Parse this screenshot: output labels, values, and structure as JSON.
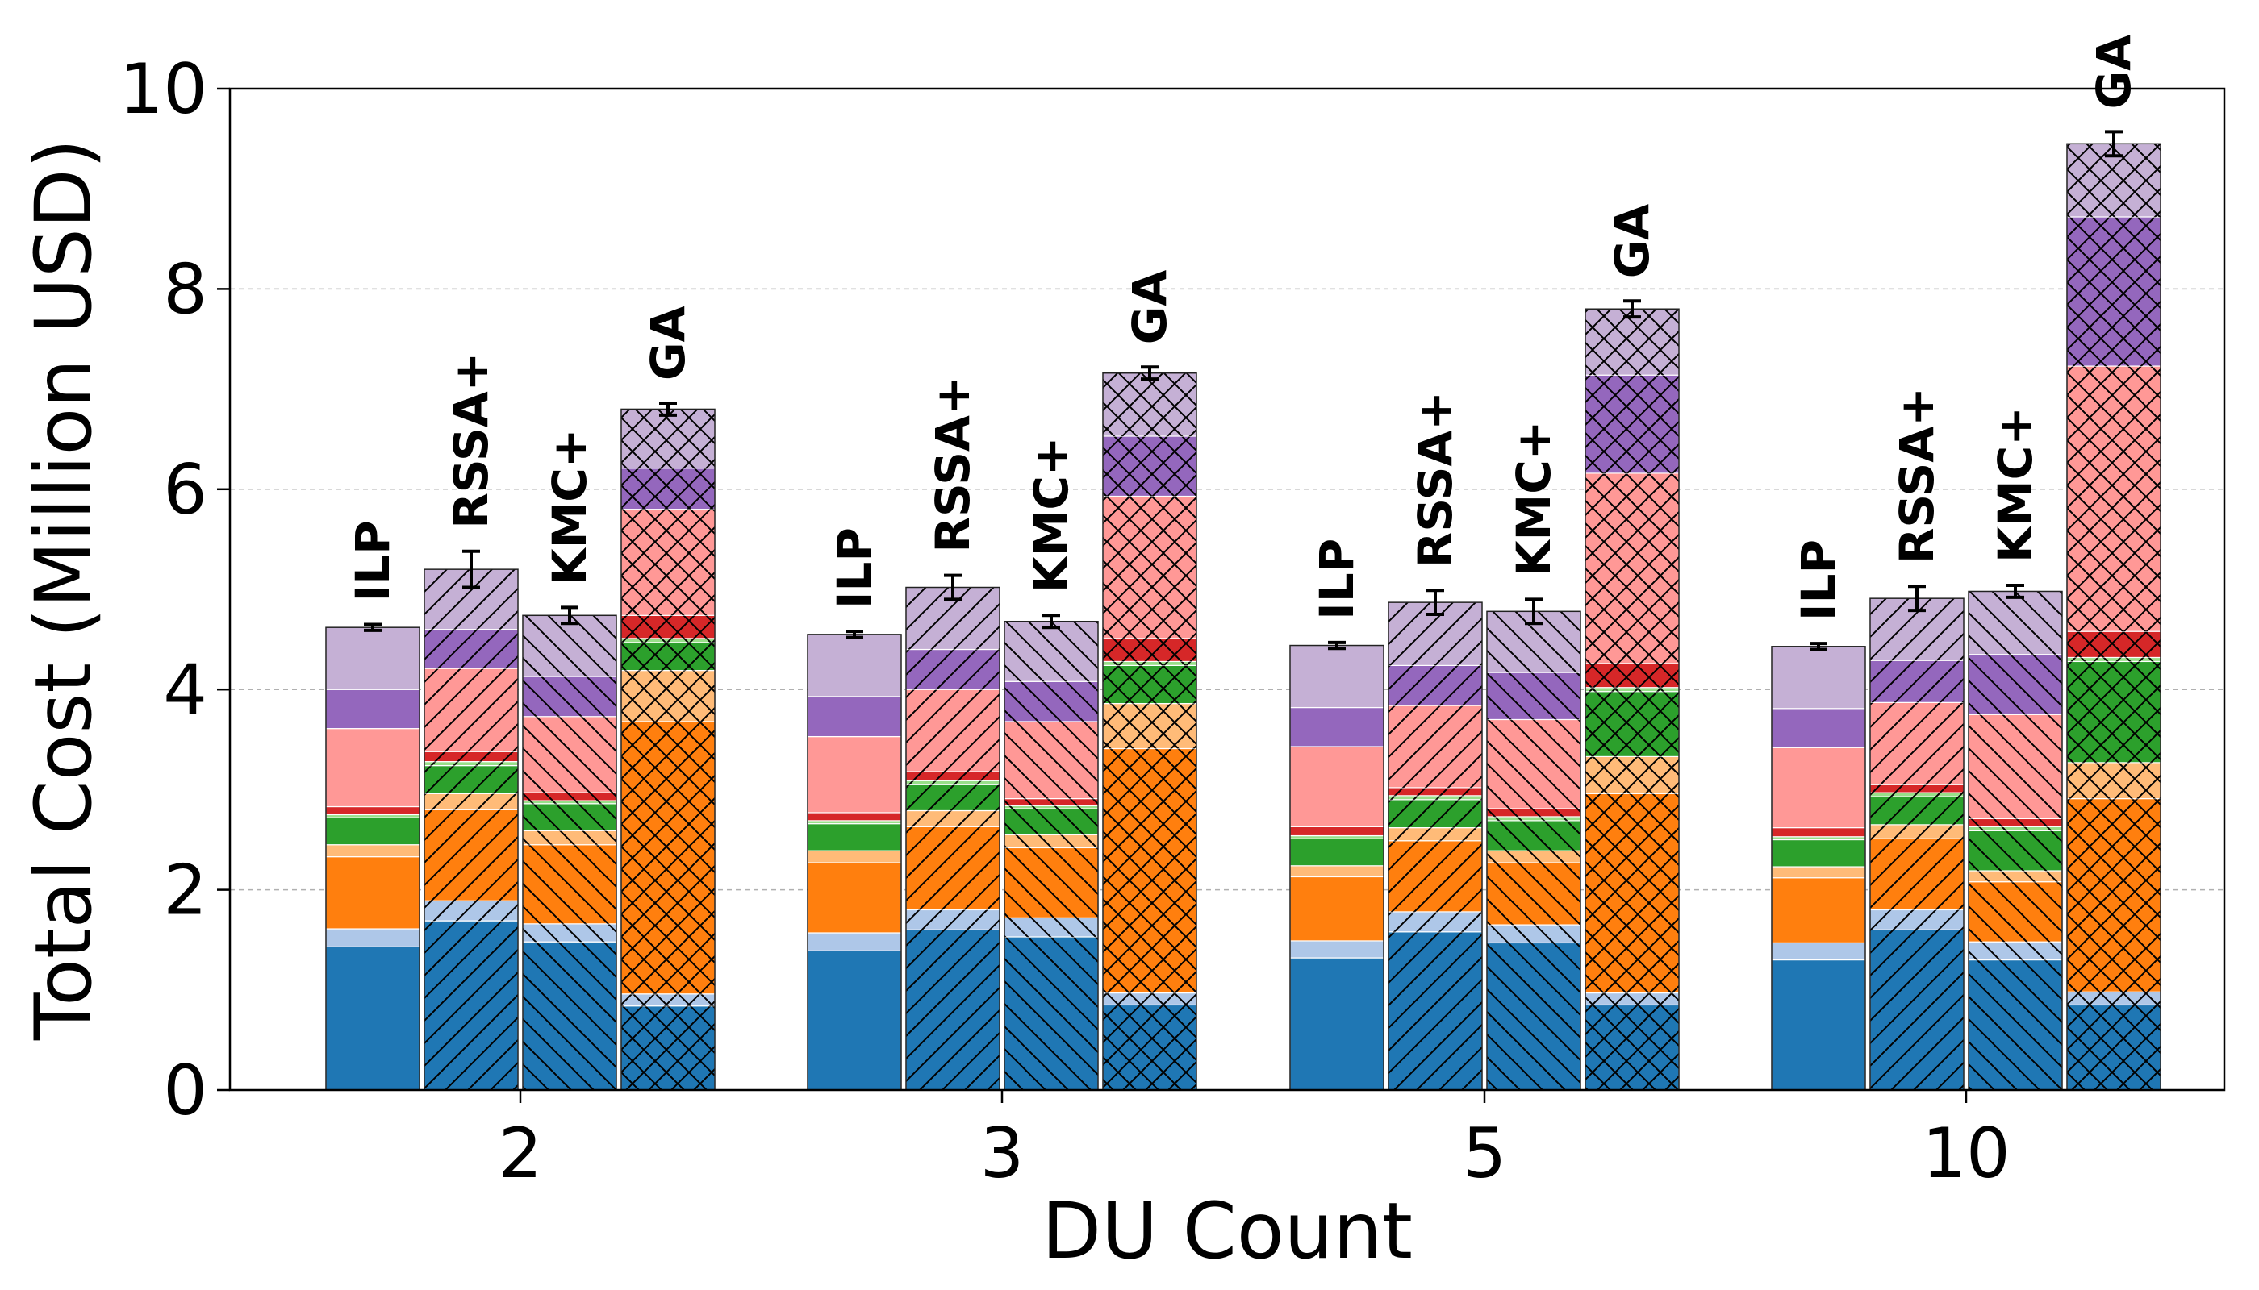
{
  "chart_data": {
    "type": "bar",
    "stacked": true,
    "xlabel": "DU Count",
    "ylabel": "Total Cost (Million USD)",
    "ylim": [
      0,
      10
    ],
    "yticks": [
      0,
      2,
      4,
      6,
      8,
      10
    ],
    "grid": "y-dashed",
    "categories": [
      "2",
      "3",
      "5",
      "10"
    ],
    "methods": [
      "ILP",
      "RSSA+",
      "KMC+",
      "GA"
    ],
    "segment_colors": [
      "#1f77b4",
      "#aec7e8",
      "#ff7f0e",
      "#ffbb78",
      "#2ca02c",
      "#98df8a",
      "#d62728",
      "#ff9896",
      "#9467bd",
      "#c5b0d5"
    ],
    "method_hatches": {
      "ILP": "none",
      "RSSA+": "forward-diagonal",
      "KMC+": "back-diagonal",
      "GA": "crosshatch"
    },
    "bars": [
      {
        "group": "2",
        "method": "ILP",
        "segments": [
          1.43,
          0.18,
          0.72,
          0.12,
          0.27,
          0.03,
          0.08,
          0.78,
          0.39,
          0.62
        ],
        "total": 4.62,
        "error": 0.03
      },
      {
        "group": "2",
        "method": "RSSA+",
        "segments": [
          1.69,
          0.2,
          0.91,
          0.16,
          0.28,
          0.04,
          0.1,
          0.83,
          0.39,
          0.6
        ],
        "total": 5.2,
        "error": 0.18
      },
      {
        "group": "2",
        "method": "KMC+",
        "segments": [
          1.48,
          0.18,
          0.79,
          0.14,
          0.27,
          0.03,
          0.08,
          0.76,
          0.4,
          0.61
        ],
        "total": 4.74,
        "error": 0.08
      },
      {
        "group": "2",
        "method": "GA",
        "segments": [
          0.84,
          0.12,
          2.72,
          0.51,
          0.28,
          0.04,
          0.23,
          1.06,
          0.41,
          0.59
        ],
        "total": 6.8,
        "error": 0.06
      },
      {
        "group": "3",
        "method": "ILP",
        "segments": [
          1.39,
          0.18,
          0.7,
          0.12,
          0.27,
          0.03,
          0.08,
          0.76,
          0.4,
          0.62
        ],
        "total": 4.55,
        "error": 0.03
      },
      {
        "group": "3",
        "method": "RSSA+",
        "segments": [
          1.6,
          0.2,
          0.83,
          0.16,
          0.26,
          0.04,
          0.09,
          0.82,
          0.4,
          0.62
        ],
        "total": 5.02,
        "error": 0.12
      },
      {
        "group": "3",
        "method": "KMC+",
        "segments": [
          1.53,
          0.19,
          0.7,
          0.13,
          0.26,
          0.03,
          0.07,
          0.77,
          0.4,
          0.6
        ],
        "total": 4.68,
        "error": 0.06
      },
      {
        "group": "3",
        "method": "GA",
        "segments": [
          0.85,
          0.12,
          2.44,
          0.45,
          0.38,
          0.04,
          0.23,
          1.42,
          0.6,
          0.63
        ],
        "total": 7.16,
        "error": 0.06
      },
      {
        "group": "5",
        "method": "ILP",
        "segments": [
          1.32,
          0.17,
          0.64,
          0.11,
          0.27,
          0.03,
          0.09,
          0.8,
          0.39,
          0.62
        ],
        "total": 4.44,
        "error": 0.03
      },
      {
        "group": "5",
        "method": "RSSA+",
        "segments": [
          1.58,
          0.2,
          0.71,
          0.13,
          0.28,
          0.04,
          0.08,
          0.82,
          0.4,
          0.63
        ],
        "total": 4.87,
        "error": 0.12
      },
      {
        "group": "5",
        "method": "KMC+",
        "segments": [
          1.47,
          0.18,
          0.62,
          0.12,
          0.3,
          0.04,
          0.08,
          0.89,
          0.47,
          0.61
        ],
        "total": 4.78,
        "error": 0.12
      },
      {
        "group": "5",
        "method": "GA",
        "segments": [
          0.85,
          0.12,
          1.99,
          0.37,
          0.65,
          0.04,
          0.24,
          1.9,
          0.98,
          0.66
        ],
        "total": 7.8,
        "error": 0.08
      },
      {
        "group": "10",
        "method": "ILP",
        "segments": [
          1.3,
          0.17,
          0.65,
          0.11,
          0.27,
          0.03,
          0.09,
          0.8,
          0.39,
          0.62
        ],
        "total": 4.43,
        "error": 0.03
      },
      {
        "group": "10",
        "method": "RSSA+",
        "segments": [
          1.6,
          0.2,
          0.71,
          0.14,
          0.28,
          0.04,
          0.08,
          0.82,
          0.42,
          0.62
        ],
        "total": 4.91,
        "error": 0.12
      },
      {
        "group": "10",
        "method": "KMC+",
        "segments": [
          1.3,
          0.18,
          0.6,
          0.11,
          0.4,
          0.04,
          0.08,
          1.04,
          0.6,
          0.63
        ],
        "total": 4.98,
        "error": 0.06
      },
      {
        "group": "10",
        "method": "GA",
        "segments": [
          0.85,
          0.13,
          1.93,
          0.36,
          1.01,
          0.04,
          0.26,
          2.65,
          1.49,
          0.73
        ],
        "total": 9.45,
        "error": 0.12
      }
    ]
  }
}
